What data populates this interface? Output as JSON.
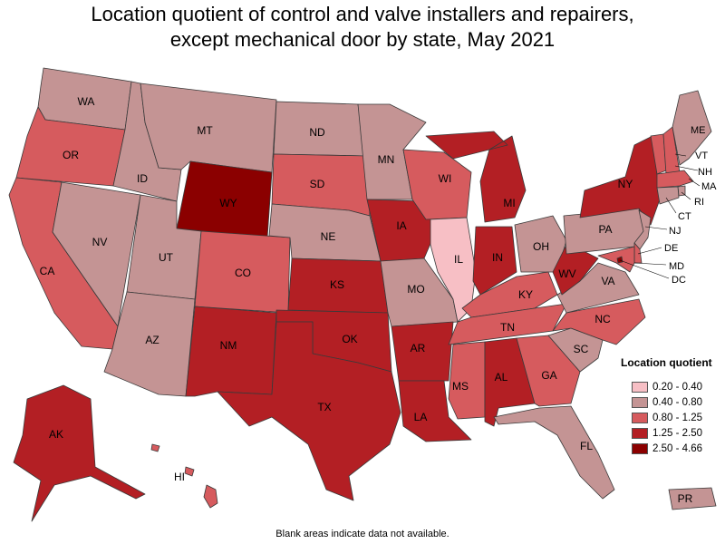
{
  "title": {
    "line1": "Location quotient of control and valve installers and repairers,",
    "line2": "except mechanical door by state, May 2021"
  },
  "legend": {
    "title": "Location quotient",
    "items": [
      {
        "label": "0.20 - 0.40",
        "color": "#f7bfc5"
      },
      {
        "label": "0.40 - 0.80",
        "color": "#c49494"
      },
      {
        "label": "0.80 - 1.25",
        "color": "#d65b5e"
      },
      {
        "label": "1.25 - 2.50",
        "color": "#b31f24"
      },
      {
        "label": "2.50 - 4.66",
        "color": "#8b0000"
      }
    ]
  },
  "footnote": "Blank areas indicate data not available.",
  "states": [
    {
      "abbr": "WA",
      "class": 1
    },
    {
      "abbr": "OR",
      "class": 2
    },
    {
      "abbr": "CA",
      "class": 2
    },
    {
      "abbr": "ID",
      "class": 1
    },
    {
      "abbr": "NV",
      "class": 1
    },
    {
      "abbr": "MT",
      "class": 1
    },
    {
      "abbr": "WY",
      "class": 4
    },
    {
      "abbr": "UT",
      "class": 1
    },
    {
      "abbr": "AZ",
      "class": 1
    },
    {
      "abbr": "CO",
      "class": 2
    },
    {
      "abbr": "NM",
      "class": 3
    },
    {
      "abbr": "ND",
      "class": 1
    },
    {
      "abbr": "SD",
      "class": 2
    },
    {
      "abbr": "NE",
      "class": 1
    },
    {
      "abbr": "KS",
      "class": 3
    },
    {
      "abbr": "OK",
      "class": 3
    },
    {
      "abbr": "TX",
      "class": 3
    },
    {
      "abbr": "MN",
      "class": 1
    },
    {
      "abbr": "IA",
      "class": 3
    },
    {
      "abbr": "MO",
      "class": 1
    },
    {
      "abbr": "AR",
      "class": 3
    },
    {
      "abbr": "LA",
      "class": 3
    },
    {
      "abbr": "WI",
      "class": 2
    },
    {
      "abbr": "IL",
      "class": 0
    },
    {
      "abbr": "MI",
      "class": 3
    },
    {
      "abbr": "IN",
      "class": 3
    },
    {
      "abbr": "OH",
      "class": 1
    },
    {
      "abbr": "KY",
      "class": 2
    },
    {
      "abbr": "TN",
      "class": 2
    },
    {
      "abbr": "MS",
      "class": 2
    },
    {
      "abbr": "AL",
      "class": 3
    },
    {
      "abbr": "GA",
      "class": 2
    },
    {
      "abbr": "FL",
      "class": 1
    },
    {
      "abbr": "SC",
      "class": 1
    },
    {
      "abbr": "NC",
      "class": 2
    },
    {
      "abbr": "VA",
      "class": 1
    },
    {
      "abbr": "WV",
      "class": 3
    },
    {
      "abbr": "PA",
      "class": 1
    },
    {
      "abbr": "NY",
      "class": 3
    },
    {
      "abbr": "VT",
      "class": 2
    },
    {
      "abbr": "NH",
      "class": 2
    },
    {
      "abbr": "ME",
      "class": 1
    },
    {
      "abbr": "MA",
      "class": 2
    },
    {
      "abbr": "RI",
      "class": 1
    },
    {
      "abbr": "CT",
      "class": 1
    },
    {
      "abbr": "NJ",
      "class": 1
    },
    {
      "abbr": "DE",
      "class": 2
    },
    {
      "abbr": "MD",
      "class": 2
    },
    {
      "abbr": "DC",
      "class": 4
    },
    {
      "abbr": "AK",
      "class": 3
    },
    {
      "abbr": "HI",
      "class": 2
    },
    {
      "abbr": "PR",
      "class": 1
    }
  ]
}
